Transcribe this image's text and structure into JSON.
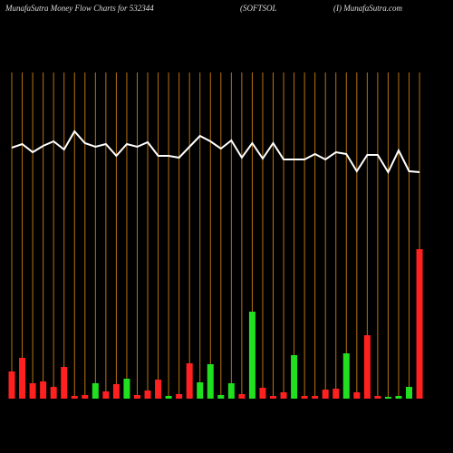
{
  "chart_data": {
    "type": "bar-line",
    "title_parts": [
      "MunafaSutra  Money Flow  Charts for 532344",
      "(SOFTSOL",
      "(I) MunafaSutra.com"
    ],
    "ylim": [
      0,
      300
    ],
    "series": [
      {
        "name": "Money Flow",
        "kind": "bar",
        "values": [
          30,
          45,
          17,
          19,
          13,
          35,
          3,
          4,
          17,
          8,
          16,
          22,
          4,
          9,
          21,
          3,
          5,
          39,
          18,
          38,
          4,
          17,
          5,
          96,
          12,
          3,
          7,
          48,
          3,
          3,
          10,
          11,
          50,
          7,
          70,
          3,
          2,
          3,
          13,
          165
        ],
        "colors": [
          "#ff2020",
          "#ff2020",
          "#ff2020",
          "#ff2020",
          "#ff2020",
          "#ff2020",
          "#ff2020",
          "#ff2020",
          "#20e020",
          "#ff2020",
          "#ff2020",
          "#20e020",
          "#ff2020",
          "#ff2020",
          "#ff2020",
          "#20e020",
          "#ff2020",
          "#ff2020",
          "#20e020",
          "#20e020",
          "#20e020",
          "#20e020",
          "#ff2020",
          "#20e020",
          "#ff2020",
          "#ff2020",
          "#ff2020",
          "#20e020",
          "#ff2020",
          "#ff2020",
          "#ff2020",
          "#ff2020",
          "#20e020",
          "#ff2020",
          "#ff2020",
          "#ff2020",
          "#20e020",
          "#20e020",
          "#20e020",
          "#ff2020"
        ]
      },
      {
        "name": "Price",
        "kind": "line",
        "color": "#ffffff",
        "values": [
          277,
          281,
          272,
          279,
          284,
          275,
          295,
          282,
          278,
          281,
          268,
          281,
          278,
          283,
          268,
          268,
          266,
          278,
          290,
          284,
          276,
          285,
          266,
          282,
          265,
          282,
          264,
          264,
          264,
          270,
          264,
          272,
          270,
          251,
          269,
          269,
          250,
          274,
          251,
          250
        ]
      }
    ],
    "grid_color": "#b8730f"
  }
}
